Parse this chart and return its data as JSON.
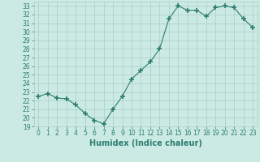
{
  "x": [
    0,
    1,
    2,
    3,
    4,
    5,
    6,
    7,
    8,
    9,
    10,
    11,
    12,
    13,
    14,
    15,
    16,
    17,
    18,
    19,
    20,
    21,
    22,
    23
  ],
  "y": [
    22.5,
    22.8,
    22.3,
    22.2,
    21.5,
    20.5,
    19.7,
    19.3,
    21.0,
    22.5,
    24.5,
    25.5,
    26.5,
    28.0,
    31.5,
    33.0,
    32.5,
    32.5,
    31.8,
    32.8,
    33.0,
    32.8,
    31.5,
    30.5
  ],
  "line_color": "#2d7d6f",
  "marker": "+",
  "marker_size": 4,
  "marker_lw": 1.2,
  "bg_color": "#cceae4",
  "grid_color": "#aacdc7",
  "xlabel": "Humidex (Indice chaleur)",
  "ylim": [
    19,
    33.5
  ],
  "xlim": [
    -0.5,
    23.5
  ],
  "yticks": [
    19,
    20,
    21,
    22,
    23,
    24,
    25,
    26,
    27,
    28,
    29,
    30,
    31,
    32,
    33
  ],
  "xticks": [
    0,
    1,
    2,
    3,
    4,
    5,
    6,
    7,
    8,
    9,
    10,
    11,
    12,
    13,
    14,
    15,
    16,
    17,
    18,
    19,
    20,
    21,
    22,
    23
  ],
  "xlabel_fontsize": 7,
  "tick_fontsize": 5.5,
  "tick_color": "#2d7d6f",
  "line_width": 0.8
}
